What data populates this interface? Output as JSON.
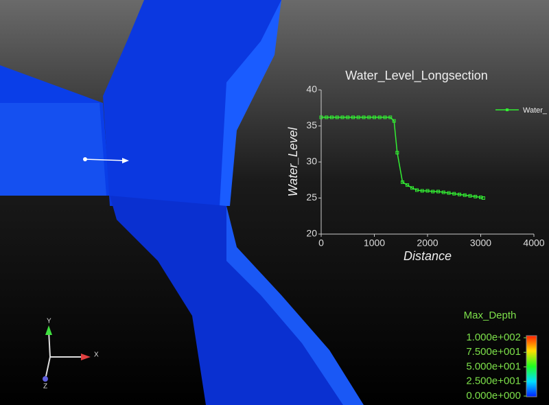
{
  "chart_data": {
    "type": "line",
    "title": "Water_Level_Longsection",
    "x_label": "Distance",
    "y_label": "Water_Level",
    "x": [
      0,
      100,
      200,
      300,
      400,
      500,
      600,
      700,
      800,
      900,
      1000,
      1100,
      1200,
      1300,
      1370,
      1430,
      1530,
      1620,
      1710,
      1800,
      1900,
      2000,
      2100,
      2200,
      2300,
      2400,
      2500,
      2600,
      2700,
      2800,
      2900,
      3000,
      3050
    ],
    "series": [
      {
        "name": "Water_",
        "color": "#33ee33",
        "values": [
          36.2,
          36.2,
          36.2,
          36.2,
          36.2,
          36.2,
          36.2,
          36.2,
          36.2,
          36.2,
          36.2,
          36.2,
          36.2,
          36.2,
          35.7,
          31.3,
          27.2,
          26.8,
          26.4,
          26.1,
          26.0,
          26.0,
          25.9,
          25.9,
          25.8,
          25.7,
          25.6,
          25.5,
          25.4,
          25.3,
          25.2,
          25.1,
          25.0
        ]
      }
    ],
    "xlim": [
      0,
      4000
    ],
    "xticks": [
      0,
      1000,
      2000,
      3000,
      4000
    ],
    "ylim": [
      20,
      40
    ],
    "yticks": [
      20,
      25,
      30,
      35,
      40
    ]
  },
  "colorbar": {
    "title": "Max_Depth",
    "ticks": [
      {
        "value": 100,
        "label": "1.000e+002"
      },
      {
        "value": 75,
        "label": "7.500e+001"
      },
      {
        "value": 50,
        "label": "5.000e+001"
      },
      {
        "value": 25,
        "label": "2.500e+001"
      },
      {
        "value": 0,
        "label": "0.000e+000"
      }
    ],
    "range": [
      0,
      100
    ]
  },
  "orientation_axes": {
    "x": "X",
    "y": "Y",
    "z": "Z"
  }
}
